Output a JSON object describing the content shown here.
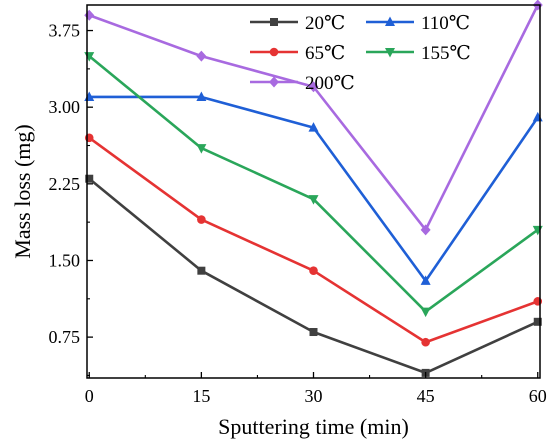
{
  "chart_data": {
    "type": "line",
    "xlabel": "Sputtering time (min)",
    "ylabel": "Mass loss (mg)",
    "x": [
      0,
      15,
      30,
      45,
      60
    ],
    "x_ticks": [
      "0",
      "15",
      "30",
      "45",
      "60"
    ],
    "y_ticks": [
      "0.75",
      "1.50",
      "2.25",
      "3.00",
      "3.75"
    ],
    "y_tick_values": [
      0.75,
      1.5,
      2.25,
      3.0,
      3.75
    ],
    "xlim": [
      -0.3,
      60.3
    ],
    "ylim": [
      0.35,
      4.0
    ],
    "grid": false,
    "legend_position": "top-right",
    "series": [
      {
        "name": "20℃",
        "color": "#404040",
        "marker": "square",
        "values": [
          2.3,
          1.4,
          0.8,
          0.4,
          0.9
        ]
      },
      {
        "name": "110℃",
        "color": "#1f5fd6",
        "marker": "triangle-up",
        "values": [
          3.1,
          3.1,
          2.8,
          1.3,
          2.9
        ]
      },
      {
        "name": "65℃",
        "color": "#e53333",
        "marker": "circle",
        "values": [
          2.7,
          1.9,
          1.4,
          0.7,
          1.1
        ]
      },
      {
        "name": "155℃",
        "color": "#2aa65a",
        "marker": "triangle-down",
        "values": [
          3.5,
          2.6,
          2.1,
          1.0,
          1.8
        ]
      },
      {
        "name": "200℃",
        "color": "#a86ae0",
        "marker": "diamond",
        "values": [
          3.9,
          3.5,
          3.2,
          1.8,
          4.0
        ]
      }
    ]
  }
}
